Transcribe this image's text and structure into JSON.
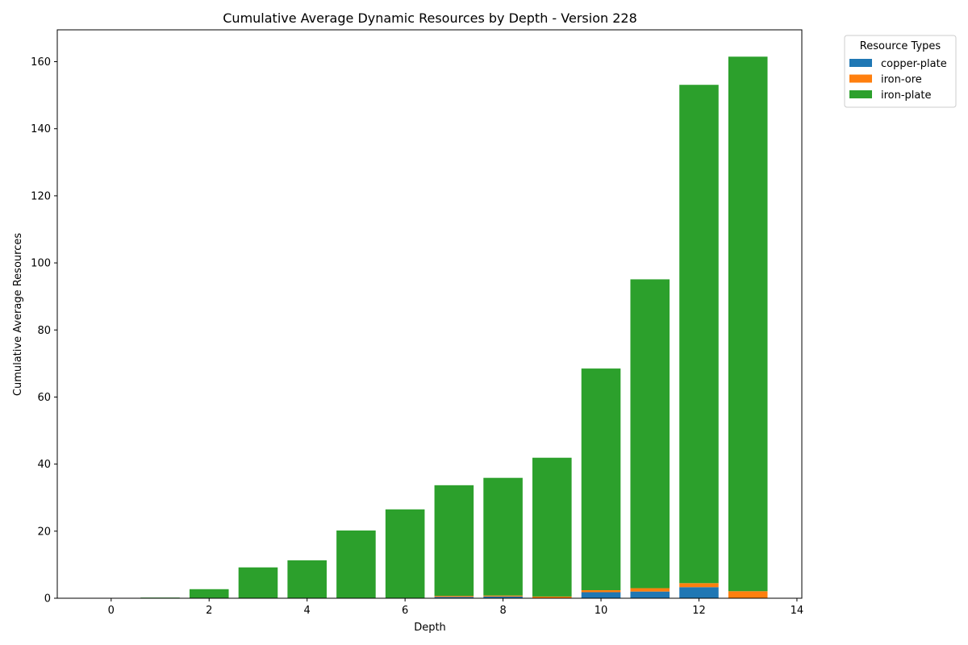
{
  "chart_data": {
    "type": "bar",
    "stacked": true,
    "title": "Cumulative Average Dynamic Resources by Depth - Version 228",
    "xlabel": "Depth",
    "ylabel": "Cumulative Average Resources",
    "x": [
      0,
      1,
      2,
      3,
      4,
      5,
      6,
      7,
      8,
      9,
      10,
      11,
      12,
      13
    ],
    "xlim": [
      -1.1,
      14.1
    ],
    "ylim": [
      0,
      169.5
    ],
    "xticks": [
      0,
      2,
      4,
      6,
      8,
      10,
      12,
      14
    ],
    "yticks": [
      0,
      20,
      40,
      60,
      80,
      100,
      120,
      140,
      160
    ],
    "grid": false,
    "legend": {
      "title": "Resource Types",
      "placement": "outside-top-right"
    },
    "series": [
      {
        "name": "copper-plate",
        "color": "#1f77b4",
        "values": [
          0,
          0,
          0,
          0,
          0,
          0,
          0,
          0.4,
          0.5,
          0,
          1.8,
          2.0,
          3.3,
          0
        ]
      },
      {
        "name": "iron-ore",
        "color": "#ff7f0e",
        "values": [
          0,
          0,
          0,
          0,
          0,
          0,
          0,
          0.3,
          0.3,
          0.5,
          0.6,
          1.0,
          1.2,
          2.1
        ]
      },
      {
        "name": "iron-plate",
        "color": "#2ca02c",
        "values": [
          0,
          0.2,
          2.7,
          9.2,
          11.3,
          20.2,
          26.5,
          33.0,
          35.1,
          41.4,
          66.1,
          92.1,
          148.6,
          159.4
        ]
      }
    ]
  }
}
